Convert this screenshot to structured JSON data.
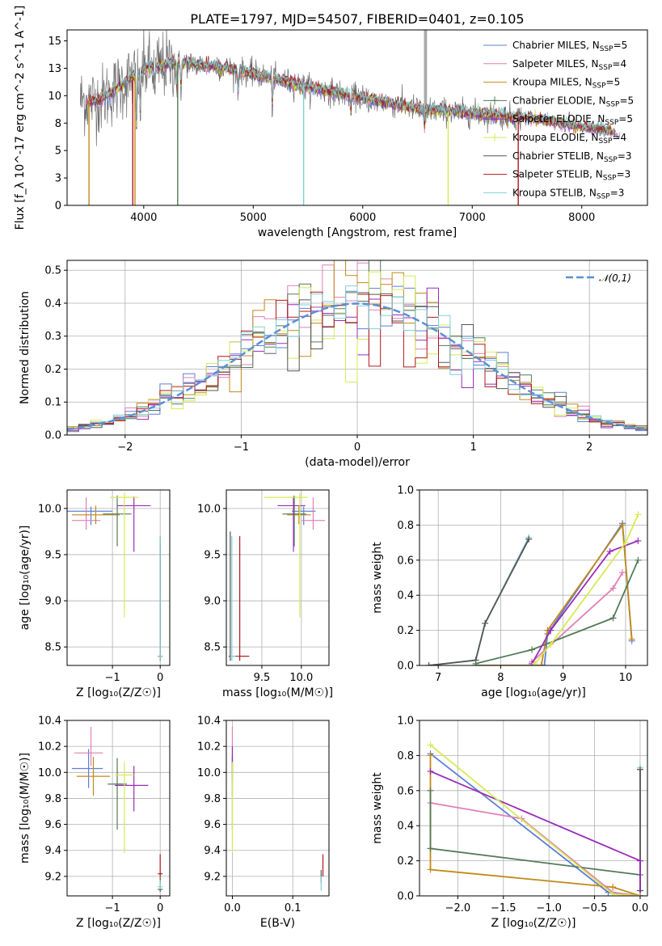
{
  "colors": {
    "Chabrier MILES": "#5b7fd6",
    "Salpeter MILES": "#e07fb6",
    "Kroupa MILES": "#c08a18",
    "Chabrier ELODIE": "#537a57",
    "Salpeter ELODIE": "#9a2bb8",
    "Kroupa ELODIE": "#d7ea52",
    "Chabrier STELIB": "#555555",
    "Salpeter STELIB": "#b3171b",
    "Kroupa STELIB": "#7fd0d8"
  },
  "chart_data": [
    {
      "id": "spectrum",
      "type": "line",
      "title": "PLATE=1797, MJD=54507, FIBERID=0401, z=0.105",
      "xlabel": "wavelength [Angstrom, rest frame]",
      "ylabel": "Flux [f_λ 10^-17 erg cm^-2 s^-1 A^-1]",
      "xlim": [
        3300,
        8600
      ],
      "ylim": [
        0,
        16
      ],
      "xticks": [
        4000,
        5000,
        6000,
        7000,
        8000
      ],
      "yticks": [
        0.0,
        2.5,
        5.0,
        7.5,
        10.0,
        12.5,
        15.0
      ],
      "legend_position": "top-right",
      "legend": [
        {
          "label": "Chabrier MILES, N",
          "sub": "SSP",
          "tail": "=5"
        },
        {
          "label": "Salpeter MILES, N",
          "sub": "SSP",
          "tail": "=4"
        },
        {
          "label": "Kroupa MILES, N",
          "sub": "SSP",
          "tail": "=5"
        },
        {
          "label": "Chabrier ELODIE, N",
          "sub": "SSP",
          "tail": "=5"
        },
        {
          "label": "Salpeter ELODIE, N",
          "sub": "SSP",
          "tail": "=5"
        },
        {
          "label": "Kroupa ELODIE, N",
          "sub": "SSP",
          "tail": "=4"
        },
        {
          "label": "Chabrier STELIB, N",
          "sub": "SSP",
          "tail": "=3"
        },
        {
          "label": "Salpeter STELIB, N",
          "sub": "SSP",
          "tail": "=3"
        },
        {
          "label": "Kroupa STELIB, N",
          "sub": "SSP",
          "tail": "=3"
        }
      ],
      "continuum_knots": [
        [
          3420,
          9.6
        ],
        [
          3600,
          9.6
        ],
        [
          3800,
          11.0
        ],
        [
          4000,
          12.4
        ],
        [
          4300,
          13.0
        ],
        [
          4600,
          12.8
        ],
        [
          5000,
          12.0
        ],
        [
          5500,
          10.8
        ],
        [
          6000,
          9.8
        ],
        [
          6500,
          8.8
        ],
        [
          7000,
          8.4
        ],
        [
          7500,
          8.0
        ],
        [
          8000,
          7.2
        ],
        [
          8350,
          6.6
        ]
      ],
      "observed_range": [
        3420,
        7450
      ],
      "model_range": [
        3470,
        8350
      ],
      "line_dips": [
        [
          3934,
          6.0
        ],
        [
          3968,
          5.0
        ],
        [
          4101,
          2.5
        ],
        [
          4304,
          3.0
        ],
        [
          4340,
          2.5
        ],
        [
          4861,
          2.5
        ],
        [
          5175,
          3.0
        ],
        [
          5890,
          2.0
        ],
        [
          6563,
          2.0
        ]
      ],
      "model_dropouts": [
        [
          3500,
          "Kroupa MILES"
        ],
        [
          3900,
          "Salpeter STELIB"
        ],
        [
          3920,
          "Kroupa MILES"
        ],
        [
          4310,
          "Chabrier ELODIE"
        ],
        [
          5460,
          "Kroupa STELIB"
        ],
        [
          6780,
          "Kroupa ELODIE"
        ],
        [
          7420,
          "Salpeter STELIB"
        ]
      ],
      "sky_line": [
        6570,
        16.0
      ]
    },
    {
      "id": "residuals",
      "type": "bar",
      "xlabel": "(data-model)/error",
      "ylabel": "Normed distribution",
      "xlim": [
        -2.5,
        2.5
      ],
      "ylim": [
        0,
        0.53
      ],
      "xticks": [
        -2,
        -1,
        0,
        1,
        2
      ],
      "yticks": [
        0.0,
        0.1,
        0.2,
        0.3,
        0.4,
        0.5
      ],
      "grid": true,
      "bin_width": 0.1,
      "reference_curve": {
        "label": "𝒩(0,1)",
        "mean": 0,
        "sigma": 1,
        "color": "#5b8fd6"
      },
      "legend_position": "top-right"
    },
    {
      "id": "age-vs-Z",
      "type": "scatter",
      "xlabel": "Z [log₁₀(Z/Z☉)]",
      "ylabel": "age  [log₁₀(age/yr)]",
      "xlim": [
        -1.95,
        0.2
      ],
      "ylim": [
        8.3,
        10.2
      ],
      "xticks": [
        -1,
        0
      ],
      "yticks": [
        8.5,
        9.0,
        9.5,
        10.0
      ],
      "grid": true,
      "points": [
        {
          "model": "Chabrier MILES",
          "x": -1.45,
          "y": 9.97,
          "xerr": [
            0.5,
            0.45
          ],
          "yerr": [
            0.15,
            0.05
          ]
        },
        {
          "model": "Salpeter MILES",
          "x": -1.55,
          "y": 9.87,
          "xerr": [
            0.3,
            0.3
          ],
          "yerr": [
            0.1,
            0.25
          ]
        },
        {
          "model": "Kroupa MILES",
          "x": -1.35,
          "y": 9.93,
          "xerr": [
            0.5,
            0.5
          ],
          "yerr": [
            0.1,
            0.1
          ]
        },
        {
          "model": "Chabrier ELODIE",
          "x": -0.9,
          "y": 9.94,
          "xerr": [
            0.3,
            0.3
          ],
          "yerr": [
            0.35,
            0.2
          ]
        },
        {
          "model": "Salpeter ELODIE",
          "x": -0.55,
          "y": 10.03,
          "xerr": [
            0.35,
            0.35
          ],
          "yerr": [
            0.5,
            0.1
          ]
        },
        {
          "model": "Kroupa ELODIE",
          "x": -0.75,
          "y": 10.12,
          "xerr": [
            0.3,
            0.3
          ],
          "yerr": [
            1.3,
            0.05
          ]
        },
        {
          "model": "Chabrier STELIB",
          "x": 0.0,
          "y": 8.4,
          "xerr": [
            0.05,
            0.05
          ],
          "yerr": [
            0.05,
            1.3
          ]
        },
        {
          "model": "Salpeter STELIB",
          "x": 0.0,
          "y": 8.4,
          "xerr": [
            0.05,
            0.05
          ],
          "yerr": [
            0.05,
            1.2
          ]
        },
        {
          "model": "Kroupa STELIB",
          "x": 0.0,
          "y": 8.4,
          "xerr": [
            0.05,
            0.05
          ],
          "yerr": [
            0.05,
            1.3
          ]
        }
      ]
    },
    {
      "id": "age-vs-mass",
      "type": "scatter",
      "xlabel": "mass [log₁₀(M/M☉)]",
      "ylabel": "",
      "xlim": [
        9.05,
        10.35
      ],
      "ylim": [
        8.3,
        10.2
      ],
      "xticks": [
        9.5,
        10.0
      ],
      "yticks": [
        8.5,
        9.0,
        9.5,
        10.0
      ],
      "grid": true,
      "points": [
        {
          "model": "Chabrier MILES",
          "x": 10.03,
          "y": 9.97,
          "xerr": [
            0.15,
            0.15
          ],
          "yerr": [
            0.15,
            0.05
          ]
        },
        {
          "model": "Salpeter MILES",
          "x": 10.15,
          "y": 9.87,
          "xerr": [
            0.15,
            0.15
          ],
          "yerr": [
            0.1,
            0.25
          ]
        },
        {
          "model": "Kroupa MILES",
          "x": 9.97,
          "y": 9.93,
          "xerr": [
            0.15,
            0.15
          ],
          "yerr": [
            0.1,
            0.1
          ]
        },
        {
          "model": "Chabrier ELODIE",
          "x": 9.91,
          "y": 9.94,
          "xerr": [
            0.15,
            0.15
          ],
          "yerr": [
            0.35,
            0.2
          ]
        },
        {
          "model": "Salpeter ELODIE",
          "x": 9.9,
          "y": 10.03,
          "xerr": [
            0.2,
            0.15
          ],
          "yerr": [
            0.5,
            0.1
          ]
        },
        {
          "model": "Kroupa ELODIE",
          "x": 9.98,
          "y": 10.12,
          "xerr": [
            0.45,
            0.1
          ],
          "yerr": [
            1.3,
            0.05
          ]
        },
        {
          "model": "Chabrier STELIB",
          "x": 9.1,
          "y": 8.4,
          "xerr": [
            0.02,
            0.1
          ],
          "yerr": [
            0.05,
            1.35
          ]
        },
        {
          "model": "Salpeter STELIB",
          "x": 9.22,
          "y": 8.4,
          "xerr": [
            0.02,
            0.12
          ],
          "yerr": [
            0.05,
            1.3
          ]
        },
        {
          "model": "Kroupa STELIB",
          "x": 9.12,
          "y": 8.4,
          "xerr": [
            0.02,
            0.05
          ],
          "yerr": [
            0.05,
            1.3
          ]
        }
      ]
    },
    {
      "id": "mass-weight-vs-age",
      "type": "line",
      "xlabel": "age  [log₁₀(age/yr)]",
      "ylabel": "mass weight",
      "xlim": [
        6.7,
        10.35
      ],
      "ylim": [
        0,
        1.0
      ],
      "xticks": [
        7,
        8,
        9,
        10
      ],
      "yticks": [
        0.0,
        0.2,
        0.4,
        0.6,
        0.8,
        1.0
      ],
      "grid": true,
      "series": [
        {
          "model": "Kroupa STELIB",
          "x": [
            6.85,
            7.6,
            7.75,
            8.45
          ],
          "y": [
            0.0,
            0.03,
            0.24,
            0.73
          ]
        },
        {
          "model": "Chabrier STELIB",
          "x": [
            6.85,
            7.6,
            7.75,
            8.45
          ],
          "y": [
            0.0,
            0.03,
            0.24,
            0.72
          ]
        },
        {
          "model": "Chabrier MILES",
          "x": [
            7.6,
            8.7,
            8.75,
            9.95,
            10.1
          ],
          "y": [
            0.0,
            0.0,
            0.18,
            0.81,
            0.14
          ]
        },
        {
          "model": "Kroupa MILES",
          "x": [
            7.6,
            8.65,
            8.75,
            9.95,
            10.1
          ],
          "y": [
            0.0,
            0.0,
            0.2,
            0.8,
            0.15
          ]
        },
        {
          "model": "Salpeter MILES",
          "x": [
            8.5,
            9.8,
            9.95
          ],
          "y": [
            0.02,
            0.44,
            0.53
          ]
        },
        {
          "model": "Chabrier ELODIE",
          "x": [
            7.6,
            8.5,
            9.8,
            10.2
          ],
          "y": [
            0.01,
            0.09,
            0.27,
            0.6
          ]
        },
        {
          "model": "Salpeter ELODIE",
          "x": [
            8.5,
            8.8,
            9.75,
            10.2
          ],
          "y": [
            0.01,
            0.2,
            0.65,
            0.71
          ]
        },
        {
          "model": "Kroupa ELODIE",
          "x": [
            8.55,
            8.8,
            10.0,
            10.2
          ],
          "y": [
            0.01,
            0.12,
            0.7,
            0.86
          ]
        }
      ]
    },
    {
      "id": "mass-vs-Z",
      "type": "scatter",
      "xlabel": "Z [log₁₀(Z/Z☉)]",
      "ylabel": "mass [log₁₀(M/M☉)]",
      "xlim": [
        -1.95,
        0.2
      ],
      "ylim": [
        9.05,
        10.4
      ],
      "xticks": [
        -1,
        0
      ],
      "yticks": [
        9.2,
        9.4,
        9.6,
        9.8,
        10.0,
        10.2,
        10.4
      ],
      "grid": true,
      "points": [
        {
          "model": "Chabrier MILES",
          "x": -1.5,
          "y": 10.03,
          "xerr": [
            0.35,
            0.3
          ],
          "yerr": [
            0.15,
            0.15
          ]
        },
        {
          "model": "Salpeter MILES",
          "x": -1.45,
          "y": 10.15,
          "xerr": [
            0.35,
            0.25
          ],
          "yerr": [
            0.1,
            0.2
          ]
        },
        {
          "model": "Kroupa MILES",
          "x": -1.4,
          "y": 9.97,
          "xerr": [
            0.35,
            0.35
          ],
          "yerr": [
            0.15,
            0.15
          ]
        },
        {
          "model": "Chabrier ELODIE",
          "x": -0.9,
          "y": 9.91,
          "xerr": [
            0.2,
            0.2
          ],
          "yerr": [
            0.35,
            0.2
          ]
        },
        {
          "model": "Salpeter ELODIE",
          "x": -0.55,
          "y": 9.9,
          "xerr": [
            0.4,
            0.3
          ],
          "yerr": [
            0.2,
            0.15
          ]
        },
        {
          "model": "Kroupa ELODIE",
          "x": -0.75,
          "y": 9.98,
          "xerr": [
            0.2,
            0.2
          ],
          "yerr": [
            0.6,
            0.1
          ]
        },
        {
          "model": "Chabrier STELIB",
          "x": 0.0,
          "y": 9.1,
          "xerr": [
            0.05,
            0.05
          ],
          "yerr": [
            0.02,
            0.1
          ]
        },
        {
          "model": "Salpeter STELIB",
          "x": 0.0,
          "y": 9.22,
          "xerr": [
            0.05,
            0.05
          ],
          "yerr": [
            0.02,
            0.15
          ]
        },
        {
          "model": "Kroupa STELIB",
          "x": 0.0,
          "y": 9.12,
          "xerr": [
            0.05,
            0.05
          ],
          "yerr": [
            0.02,
            0.05
          ]
        }
      ]
    },
    {
      "id": "mass-vs-EBV",
      "type": "scatter",
      "xlabel": "E(B-V)",
      "ylabel": "",
      "xlim": [
        -0.01,
        0.16
      ],
      "ylim": [
        9.05,
        10.4
      ],
      "xticks": [
        0.0,
        0.1
      ],
      "yticks": [
        9.2,
        9.4,
        9.6,
        9.8,
        10.0,
        10.2,
        10.4
      ],
      "grid": true,
      "points": [
        {
          "model": "Chabrier MILES",
          "x": 0.0,
          "y": 10.03,
          "yerr": [
            0.1,
            0.1
          ]
        },
        {
          "model": "Salpeter MILES",
          "x": 0.0,
          "y": 10.15,
          "yerr": [
            0.1,
            0.2
          ]
        },
        {
          "model": "Kroupa MILES",
          "x": 0.0,
          "y": 9.97,
          "yerr": [
            0.15,
            0.15
          ]
        },
        {
          "model": "Chabrier ELODIE",
          "x": 0.0,
          "y": 9.91,
          "yerr": [
            0.35,
            0.2
          ]
        },
        {
          "model": "Salpeter ELODIE",
          "x": 0.0,
          "y": 10.1,
          "yerr": [
            0.1,
            0.1
          ]
        },
        {
          "model": "Kroupa ELODIE",
          "x": 0.0,
          "y": 9.98,
          "yerr": [
            0.6,
            0.1
          ]
        },
        {
          "model": "Chabrier STELIB",
          "x": 0.147,
          "y": 9.2,
          "yerr": [
            0.05,
            0.05
          ]
        },
        {
          "model": "Salpeter STELIB",
          "x": 0.15,
          "y": 9.25,
          "yerr": [
            0.05,
            0.12
          ]
        },
        {
          "model": "Kroupa STELIB",
          "x": 0.147,
          "y": 9.12,
          "yerr": [
            0.03,
            0.08
          ]
        }
      ]
    },
    {
      "id": "mass-weight-vs-Z",
      "type": "line",
      "xlabel": "Z [log₁₀(Z/Z☉)]",
      "ylabel": "mass weight",
      "xlim": [
        -2.42,
        0.08
      ],
      "ylim": [
        0,
        1.0
      ],
      "xticks": [
        -2.0,
        -1.5,
        -1.0,
        -0.5,
        0.0
      ],
      "yticks": [
        0.0,
        0.2,
        0.4,
        0.6,
        0.8,
        1.0
      ],
      "grid": true,
      "series": [
        {
          "model": "Kroupa STELIB",
          "x": [
            0.0,
            0.0,
            0.0
          ],
          "y": [
            0.0,
            0.03,
            0.73
          ]
        },
        {
          "model": "Chabrier STELIB",
          "x": [
            0.0,
            0.0,
            0.0
          ],
          "y": [
            0.0,
            0.03,
            0.72
          ]
        },
        {
          "model": "Chabrier MILES",
          "x": [
            -2.3,
            -0.35,
            0.0
          ],
          "y": [
            0.81,
            0.02,
            0.0
          ]
        },
        {
          "model": "Kroupa MILES",
          "x": [
            -2.3,
            -2.3,
            -0.3,
            0.0
          ],
          "y": [
            0.8,
            0.15,
            0.05,
            0.0
          ]
        },
        {
          "model": "Salpeter MILES",
          "x": [
            -2.3,
            -1.3,
            -0.3,
            0.0
          ],
          "y": [
            0.53,
            0.44,
            0.02,
            0.0
          ]
        },
        {
          "model": "Chabrier ELODIE",
          "x": [
            -2.3,
            -2.3,
            0.0
          ],
          "y": [
            0.6,
            0.27,
            0.12
          ]
        },
        {
          "model": "Salpeter ELODIE",
          "x": [
            -2.3,
            0.0,
            0.0
          ],
          "y": [
            0.71,
            0.2,
            0.0
          ]
        },
        {
          "model": "Kroupa ELODIE",
          "x": [
            -2.3,
            -0.3,
            0.0
          ],
          "y": [
            0.86,
            0.01,
            0.0
          ]
        }
      ]
    }
  ]
}
